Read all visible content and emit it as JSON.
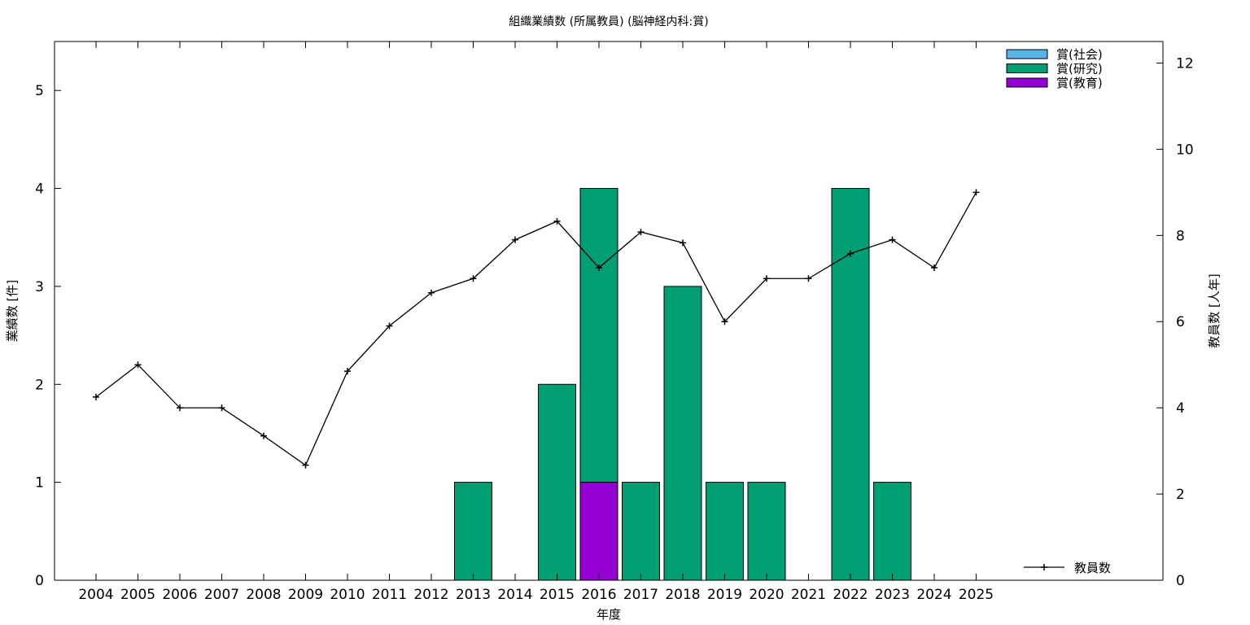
{
  "chart_data": {
    "type": "bar",
    "title": "組織業績数 (所属教員) (脳神経内科:賞)",
    "xlabel": "年度",
    "ylabel": "業績数 [件]",
    "y2label": "教員数 [人年]",
    "categories": [
      "2004",
      "2005",
      "2006",
      "2007",
      "2008",
      "2009",
      "2010",
      "2011",
      "2012",
      "2013",
      "2014",
      "2015",
      "2016",
      "2017",
      "2018",
      "2019",
      "2020",
      "2021",
      "2022",
      "2023",
      "2024",
      "2025"
    ],
    "ylim": [
      0,
      5.5
    ],
    "yticks": [
      0,
      1,
      2,
      3,
      4,
      5
    ],
    "y2lim": [
      0,
      12.5
    ],
    "y2ticks": [
      0,
      2,
      4,
      6,
      8,
      10,
      12
    ],
    "stacked": true,
    "series": [
      {
        "name": "賞(社会)",
        "color": "#56b4e9",
        "values": [
          0,
          0,
          0,
          0,
          0,
          0,
          0,
          0,
          0,
          0,
          0,
          0,
          0,
          0,
          0,
          0,
          0,
          0,
          0,
          0,
          0,
          0
        ]
      },
      {
        "name": "賞(研究)",
        "color": "#009e73",
        "values": [
          0,
          0,
          0,
          0,
          0,
          0,
          0,
          0,
          0,
          1,
          0,
          2,
          3,
          1,
          3,
          1,
          1,
          0,
          4,
          1,
          0,
          0
        ]
      },
      {
        "name": "賞(教育)",
        "color": "#9400d3",
        "values": [
          0,
          0,
          0,
          0,
          0,
          0,
          0,
          0,
          0,
          0,
          0,
          0,
          1,
          0,
          0,
          0,
          0,
          0,
          0,
          0,
          0,
          0
        ]
      }
    ],
    "line_series": {
      "name": "教員数",
      "axis": "y2",
      "color": "#000000",
      "values": [
        4.25,
        5.0,
        4.0,
        4.0,
        3.35,
        2.67,
        4.85,
        5.9,
        6.67,
        7.0,
        7.9,
        8.33,
        7.25,
        8.08,
        7.83,
        6.0,
        7.0,
        7.0,
        7.58,
        7.9,
        7.25,
        9.0
      ]
    },
    "legend_position": "top-right",
    "line_legend_position": "bottom-right",
    "grid": false
  }
}
